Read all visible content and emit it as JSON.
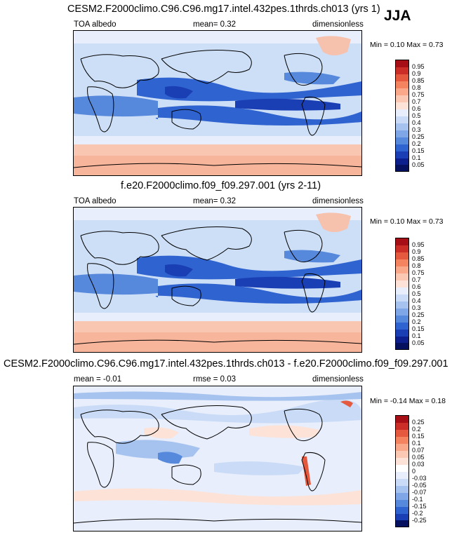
{
  "season": "JJA",
  "panels": [
    {
      "title": "CESM2.F2000climo.C96.C96.mg17.intel.432pes.1thrds.ch013 (yrs 1)",
      "left_label": "TOA albedo",
      "center_label": "mean=   0.32",
      "right_label": "dimensionless",
      "minmax": "Min =   0.10 Max =   0.73",
      "colorbar_labels": [
        "0.95",
        "0.9",
        "0.85",
        "0.8",
        "0.75",
        "0.7",
        "0.6",
        "0.5",
        "0.4",
        "0.3",
        "0.25",
        "0.2",
        "0.15",
        "0.1",
        "0.05"
      ]
    },
    {
      "title": "f.e20.F2000climo.f09_f09.297.001 (yrs 2-11)",
      "left_label": "TOA albedo",
      "center_label": "mean=   0.32",
      "right_label": "dimensionless",
      "minmax": "Min =   0.10 Max =   0.73",
      "colorbar_labels": [
        "0.95",
        "0.9",
        "0.85",
        "0.8",
        "0.75",
        "0.7",
        "0.6",
        "0.5",
        "0.4",
        "0.3",
        "0.25",
        "0.2",
        "0.15",
        "0.1",
        "0.05"
      ]
    },
    {
      "title": "CESM2.F2000climo.C96.C96.mg17.intel.432pes.1thrds.ch013 - f.e20.F2000climo.f09_f09.297.001",
      "left_label": "mean =  -0.01",
      "center_label": "rmse =   0.03",
      "right_label": "dimensionless",
      "minmax": "Min =  -0.14 Max =   0.18",
      "colorbar_labels": [
        "0.25",
        "0.2",
        "0.15",
        "0.1",
        "0.07",
        "0.05",
        "0.03",
        "0",
        "-0.03",
        "-0.05",
        "-0.07",
        "-0.1",
        "-0.15",
        "-0.2",
        "-0.25"
      ]
    }
  ],
  "colorbar_colors": [
    "#a50f15",
    "#cb2d27",
    "#e55a3e",
    "#f4835f",
    "#f9a98a",
    "#fbc9b3",
    "#fde3d7",
    "#e8eefb",
    "#c9dbf6",
    "#a6c3ef",
    "#7fa6e6",
    "#5688dc",
    "#2f63cf",
    "#1a3fb5",
    "#0c1f8c",
    "#05105e"
  ]
}
